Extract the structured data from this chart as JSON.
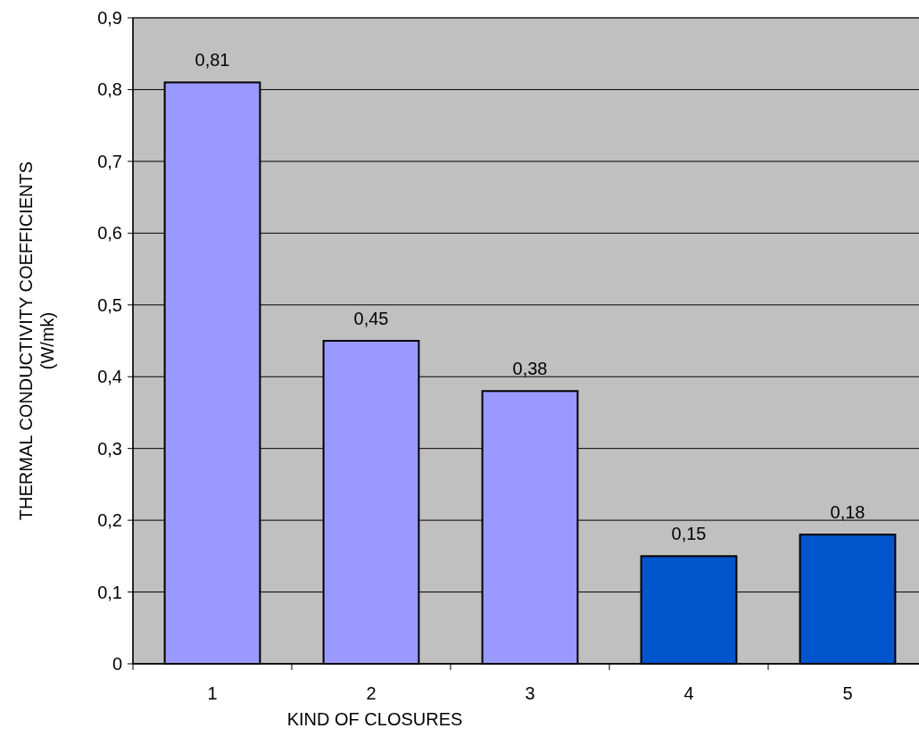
{
  "chart_data": {
    "type": "bar",
    "xlabel": "KIND OF CLOSURES",
    "ylabel": "THERMAL CONDUCTIVITY COEFFICIENTS\n(W/mk)",
    "categories": [
      "1",
      "2",
      "3",
      "4",
      "5"
    ],
    "values": [
      0.81,
      0.45,
      0.38,
      0.15,
      0.18
    ],
    "colors": [
      "#9999ff",
      "#9999ff",
      "#9999ff",
      "#0055cc",
      "#0055cc"
    ],
    "value_labels": [
      "0,81",
      "0,45",
      "0,38",
      "0,15",
      "0,18"
    ],
    "ylim": [
      0,
      0.9
    ],
    "yticks": [
      {
        "value": 0,
        "label": "0"
      },
      {
        "value": 0.1,
        "label": "0,1"
      },
      {
        "value": 0.2,
        "label": "0,2"
      },
      {
        "value": 0.3,
        "label": "0,3"
      },
      {
        "value": 0.4,
        "label": "0,4"
      },
      {
        "value": 0.5,
        "label": "0,5"
      },
      {
        "value": 0.6,
        "label": "0,6"
      },
      {
        "value": 0.7,
        "label": "0,7"
      },
      {
        "value": 0.8,
        "label": "0,8"
      },
      {
        "value": 0.9,
        "label": "0,9"
      }
    ],
    "grid": "y"
  }
}
